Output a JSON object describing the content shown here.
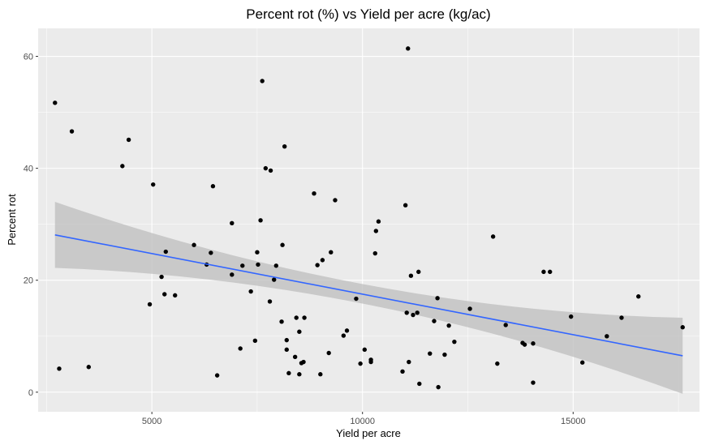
{
  "chart_data": {
    "type": "scatter",
    "title": "Percent rot (%) vs Yield per acre (kg/ac)",
    "xlabel": "Yield per acre",
    "ylabel": "Percent rot",
    "xlim": [
      2300,
      18000
    ],
    "ylim": [
      -3.5,
      65
    ],
    "x_ticks": [
      5000,
      10000,
      15000
    ],
    "x_tick_labels": [
      "5000",
      "10000",
      "15000"
    ],
    "y_ticks": [
      0,
      20,
      40,
      60
    ],
    "y_tick_labels": [
      "0",
      "20",
      "40",
      "60"
    ],
    "grid": true,
    "colors": {
      "panel_background": "#ebebeb",
      "grid_major": "#ffffff",
      "points": "#000000",
      "trend_line": "#3366ff",
      "confidence_band": "#bdbdbd"
    },
    "series": [
      {
        "points": [
          [
            2700,
            51.7
          ],
          [
            2800,
            4.2
          ],
          [
            3100,
            46.6
          ],
          [
            3500,
            4.5
          ],
          [
            4300,
            40.4
          ],
          [
            4450,
            45.1
          ],
          [
            4950,
            15.7
          ],
          [
            5030,
            37.1
          ],
          [
            5230,
            20.6
          ],
          [
            5300,
            17.5
          ],
          [
            5330,
            25.1
          ],
          [
            5550,
            17.3
          ],
          [
            6000,
            26.3
          ],
          [
            6300,
            22.8
          ],
          [
            6400,
            24.9
          ],
          [
            6450,
            36.8
          ],
          [
            6550,
            3.0
          ],
          [
            6900,
            30.2
          ],
          [
            6900,
            21.0
          ],
          [
            7100,
            7.8
          ],
          [
            7150,
            22.6
          ],
          [
            7350,
            18.0
          ],
          [
            7450,
            9.2
          ],
          [
            7500,
            25.0
          ],
          [
            7520,
            22.8
          ],
          [
            7580,
            30.7
          ],
          [
            7620,
            55.6
          ],
          [
            7700,
            40.0
          ],
          [
            7800,
            16.2
          ],
          [
            7820,
            39.6
          ],
          [
            7900,
            20.1
          ],
          [
            7950,
            22.6
          ],
          [
            8080,
            12.6
          ],
          [
            8100,
            26.3
          ],
          [
            8150,
            43.9
          ],
          [
            8200,
            9.3
          ],
          [
            8200,
            7.6
          ],
          [
            8250,
            3.4
          ],
          [
            8400,
            6.3
          ],
          [
            8430,
            13.3
          ],
          [
            8500,
            3.2
          ],
          [
            8500,
            10.8
          ],
          [
            8550,
            5.2
          ],
          [
            8600,
            5.4
          ],
          [
            8620,
            13.3
          ],
          [
            8850,
            35.5
          ],
          [
            8930,
            22.7
          ],
          [
            9000,
            3.2
          ],
          [
            9050,
            23.6
          ],
          [
            9200,
            7.0
          ],
          [
            9250,
            25.0
          ],
          [
            9350,
            34.3
          ],
          [
            9550,
            10.1
          ],
          [
            9630,
            11.0
          ],
          [
            9850,
            16.7
          ],
          [
            9950,
            5.1
          ],
          [
            10050,
            7.6
          ],
          [
            10200,
            5.4
          ],
          [
            10200,
            5.8
          ],
          [
            10300,
            24.8
          ],
          [
            10320,
            28.8
          ],
          [
            10380,
            30.5
          ],
          [
            10950,
            3.7
          ],
          [
            11020,
            33.4
          ],
          [
            11050,
            14.2
          ],
          [
            11080,
            61.4
          ],
          [
            11100,
            5.4
          ],
          [
            11150,
            20.8
          ],
          [
            11200,
            13.8
          ],
          [
            11300,
            14.2
          ],
          [
            11330,
            21.5
          ],
          [
            11350,
            1.5
          ],
          [
            11600,
            6.9
          ],
          [
            11700,
            12.7
          ],
          [
            11780,
            16.8
          ],
          [
            11800,
            0.9
          ],
          [
            11950,
            6.7
          ],
          [
            12050,
            11.9
          ],
          [
            12180,
            9.0
          ],
          [
            12550,
            14.9
          ],
          [
            13100,
            27.8
          ],
          [
            13200,
            5.1
          ],
          [
            13400,
            12.0
          ],
          [
            13800,
            8.8
          ],
          [
            13850,
            8.5
          ],
          [
            14050,
            8.7
          ],
          [
            14050,
            1.7
          ],
          [
            14300,
            21.5
          ],
          [
            14450,
            21.5
          ],
          [
            14950,
            13.5
          ],
          [
            15220,
            5.3
          ],
          [
            15800,
            10.0
          ],
          [
            16150,
            13.3
          ],
          [
            16550,
            17.1
          ],
          [
            17600,
            11.6
          ]
        ]
      }
    ],
    "trend_line": {
      "method": "linear fit",
      "x": [
        2700,
        17600
      ],
      "y": [
        28.1,
        6.5
      ],
      "ci_lower": [
        22.2,
        -0.3
      ],
      "ci_mid_x": 10200,
      "ci_mid": [
        15.7,
        19.0
      ],
      "ci_upper": [
        34.0,
        13.3
      ]
    }
  }
}
